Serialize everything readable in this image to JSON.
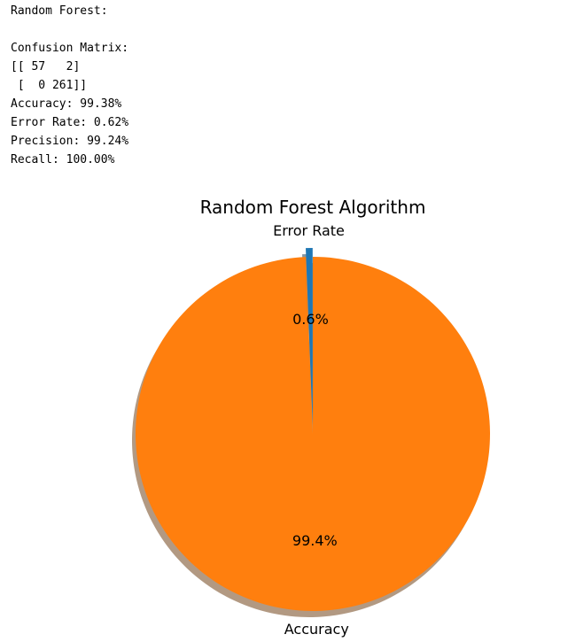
{
  "console_output": {
    "heading": "Random Forest:",
    "matrix_title": "Confusion Matrix:",
    "matrix_rows": [
      "[[ 57   2]",
      " [  0 261]]"
    ],
    "metrics": [
      "Accuracy: 99.38%",
      "Error Rate: 0.62%",
      "Precision: 99.24%",
      "Recall: 100.00%"
    ]
  },
  "chart_data": {
    "type": "pie",
    "title": "Random Forest Algorithm",
    "labels": [
      "Error Rate",
      "Accuracy"
    ],
    "values": [
      0.62,
      99.38
    ],
    "pct_labels": [
      "0.6%",
      "99.4%"
    ],
    "colors": [
      "#1f77b4",
      "#ff7f0e"
    ],
    "explode": [
      0.1,
      0
    ],
    "shadow": true,
    "start_angle": 90
  }
}
